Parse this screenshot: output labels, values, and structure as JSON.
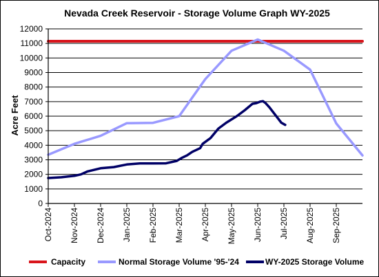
{
  "chart_data": {
    "type": "line",
    "title": "Nevada Creek Reservoir - Storage Volume Graph WY-2025",
    "ylabel": "Acre Feet",
    "xlabel": "",
    "ylim": [
      0,
      12000
    ],
    "xlim": [
      0,
      12
    ],
    "yticks": [
      "0",
      "1000",
      "2000",
      "3000",
      "4000",
      "5000",
      "6000",
      "7000",
      "8000",
      "9000",
      "10000",
      "11000",
      "12000"
    ],
    "xticks": [
      "Oct-2024",
      "Nov-2024",
      "Dec-2024",
      "Jan-2025",
      "Feb-2025",
      "Mar-2025",
      "Apr-2025",
      "May-2025",
      "Jun-2025",
      "Jul-2025",
      "Aug-2025",
      "Sep-2025"
    ],
    "grid": "horizontal",
    "legend_position": "bottom",
    "series": [
      {
        "name": "Capacity",
        "color": "#d9141b",
        "x": [
          0,
          12
        ],
        "y": [
          11150,
          11150
        ]
      },
      {
        "name": "Normal Storage Volume '95-'24",
        "color": "#9999ff",
        "x": [
          0,
          1,
          2,
          3,
          4,
          5,
          6,
          7,
          8,
          9,
          10,
          11,
          12
        ],
        "y": [
          3350,
          4100,
          4650,
          5520,
          5540,
          6000,
          8550,
          10500,
          11270,
          10500,
          9200,
          5500,
          3300
        ]
      },
      {
        "name": "WY-2025 Storage Volume",
        "color": "#000066",
        "x": [
          0,
          0.5,
          1,
          1.25,
          1.5,
          2,
          2.5,
          3,
          3.5,
          4,
          4.5,
          4.9,
          5.1,
          5.3,
          5.5,
          5.8,
          5.9,
          6.2,
          6.5,
          6.8,
          7.2,
          7.5,
          7.8,
          7.95,
          8.1,
          8.2,
          8.3,
          8.45,
          8.6,
          8.75,
          8.9,
          9.05
        ],
        "y": [
          1750,
          1800,
          1900,
          2000,
          2200,
          2420,
          2500,
          2680,
          2750,
          2750,
          2760,
          2920,
          3130,
          3300,
          3550,
          3800,
          4100,
          4500,
          5150,
          5550,
          6000,
          6400,
          6850,
          6900,
          7000,
          7030,
          6900,
          6600,
          6250,
          5900,
          5550,
          5400
        ]
      }
    ]
  }
}
